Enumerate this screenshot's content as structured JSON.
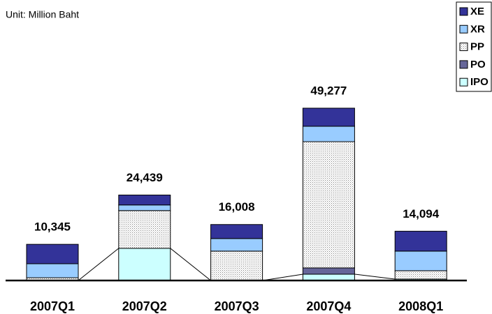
{
  "chart_data": {
    "type": "stacked-bar",
    "subtitle": "Unit: Million Baht",
    "categories": [
      "2007Q1",
      "2007Q2",
      "2007Q3",
      "2007Q4",
      "2008Q1"
    ],
    "series": [
      {
        "name": "XE",
        "color": "#333399",
        "values": [
          5545,
          2839,
          4008,
          5177,
          5694
        ]
      },
      {
        "name": "XR",
        "color": "#99ccff",
        "values": [
          4000,
          1600,
          3600,
          4400,
          5600
        ]
      },
      {
        "name": "PP",
        "color": "#dddddd",
        "values": [
          800,
          10800,
          8400,
          36100,
          2400
        ]
      },
      {
        "name": "PO",
        "color": "#666699",
        "values": [
          0,
          0,
          0,
          1800,
          0
        ]
      },
      {
        "name": "IPO",
        "color": "#ccffff",
        "values": [
          0,
          9200,
          0,
          1800,
          400
        ]
      }
    ],
    "totals": [
      10345,
      24439,
      16008,
      49277,
      14094
    ],
    "total_labels": [
      "10,345",
      "24,439",
      "16,008",
      "49,277",
      "14,094"
    ],
    "legend": "top-right"
  }
}
